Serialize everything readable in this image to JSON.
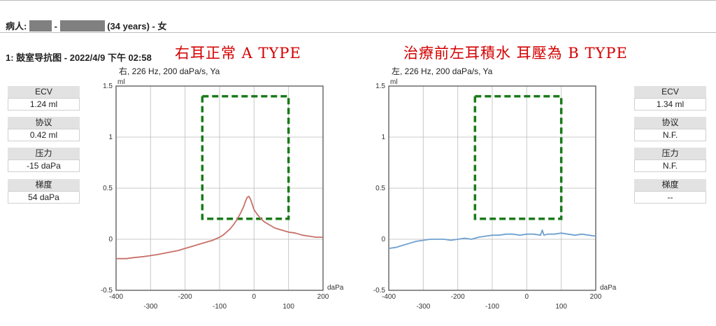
{
  "header": {
    "patient_prefix": "病人:",
    "patient_dash": "-",
    "patient_suffix": "(34 years) - 女",
    "exam_label": "1: 鼓室导抗图 - 2022/4/9 下午 02:58"
  },
  "annotations": {
    "left": "右耳正常 A TYPE",
    "right": "治療前左耳積水 耳壓為 B TYPE"
  },
  "panels": [
    {
      "subtitle": "右, 226 Hz, 200 daPa/s, Ya",
      "boxes": [
        {
          "label": "ECV",
          "value": "1.24 ml"
        },
        {
          "label": "协议",
          "value": "0.42 ml"
        },
        {
          "label": "压力",
          "value": "-15 daPa"
        },
        {
          "label": "梯度",
          "value": "54 daPa"
        }
      ]
    },
    {
      "subtitle": "左, 226 Hz, 200 daPa/s, Ya",
      "boxes": [
        {
          "label": "ECV",
          "value": "1.34 ml"
        },
        {
          "label": "协议",
          "value": "N.F."
        },
        {
          "label": "压力",
          "value": "N.F."
        },
        {
          "label": "梯度",
          "value": "--"
        }
      ]
    }
  ],
  "chart_data": [
    {
      "type": "line",
      "xlabel": "daPa",
      "ylabel": "ml",
      "xlim": [
        -400,
        200
      ],
      "ylim": [
        -0.5,
        1.5
      ],
      "xticks": [
        -400,
        -300,
        -200,
        -100,
        0,
        100,
        200
      ],
      "xtick_labels": [
        "-400",
        "-300",
        "-200",
        "-100",
        "0",
        "100",
        "200"
      ],
      "yticks": [
        -0.5,
        0,
        0.5,
        1,
        1.5
      ],
      "ytick_labels": [
        "-0.5",
        "0",
        "0.5",
        "1",
        "1.5"
      ],
      "grid": true,
      "series": [
        {
          "color": "#c8706a",
          "x": [
            -400,
            -370,
            -350,
            -320,
            -300,
            -280,
            -250,
            -220,
            -200,
            -180,
            -160,
            -140,
            -120,
            -100,
            -90,
            -80,
            -70,
            -60,
            -50,
            -40,
            -30,
            -25,
            -20,
            -15,
            -10,
            -5,
            0,
            10,
            20,
            30,
            40,
            50,
            60,
            80,
            100,
            120,
            140,
            160,
            180,
            200
          ],
          "y": [
            -0.19,
            -0.19,
            -0.18,
            -0.17,
            -0.16,
            -0.15,
            -0.13,
            -0.11,
            -0.09,
            -0.07,
            -0.05,
            -0.03,
            -0.01,
            0.02,
            0.04,
            0.07,
            0.1,
            0.14,
            0.19,
            0.25,
            0.32,
            0.37,
            0.41,
            0.42,
            0.39,
            0.34,
            0.29,
            0.24,
            0.2,
            0.17,
            0.15,
            0.13,
            0.11,
            0.09,
            0.07,
            0.06,
            0.04,
            0.03,
            0.02,
            0.02
          ]
        }
      ],
      "highlight_box": {
        "color": "#1a7a1a",
        "x": [
          -150,
          100
        ],
        "y": [
          0.2,
          1.4
        ]
      }
    },
    {
      "type": "line",
      "xlabel": "daPa",
      "ylabel": "ml",
      "xlim": [
        -400,
        200
      ],
      "ylim": [
        -0.5,
        1.5
      ],
      "xticks": [
        -400,
        -300,
        -200,
        -100,
        0,
        100,
        200
      ],
      "xtick_labels": [
        "-400",
        "-300",
        "-200",
        "-100",
        "0",
        "100",
        "200"
      ],
      "yticks": [
        -0.5,
        0,
        0.5,
        1,
        1.5
      ],
      "ytick_labels": [
        "-0.5",
        "0",
        "0.5",
        "1",
        "1.5"
      ],
      "grid": true,
      "series": [
        {
          "color": "#6fa0d0",
          "x": [
            -400,
            -380,
            -360,
            -340,
            -320,
            -300,
            -280,
            -260,
            -240,
            -220,
            -200,
            -180,
            -160,
            -140,
            -120,
            -100,
            -80,
            -60,
            -40,
            -20,
            0,
            20,
            40,
            45,
            50,
            60,
            80,
            100,
            120,
            140,
            160,
            180,
            200
          ],
          "y": [
            -0.09,
            -0.08,
            -0.06,
            -0.04,
            -0.02,
            -0.01,
            0.0,
            0.0,
            0.0,
            -0.01,
            0.0,
            0.01,
            0.0,
            0.02,
            0.03,
            0.04,
            0.04,
            0.05,
            0.05,
            0.04,
            0.05,
            0.05,
            0.04,
            0.09,
            0.04,
            0.05,
            0.05,
            0.06,
            0.05,
            0.04,
            0.05,
            0.04,
            0.03
          ]
        }
      ],
      "highlight_box": {
        "color": "#1a7a1a",
        "x": [
          -150,
          100
        ],
        "y": [
          0.2,
          1.4
        ]
      }
    }
  ]
}
